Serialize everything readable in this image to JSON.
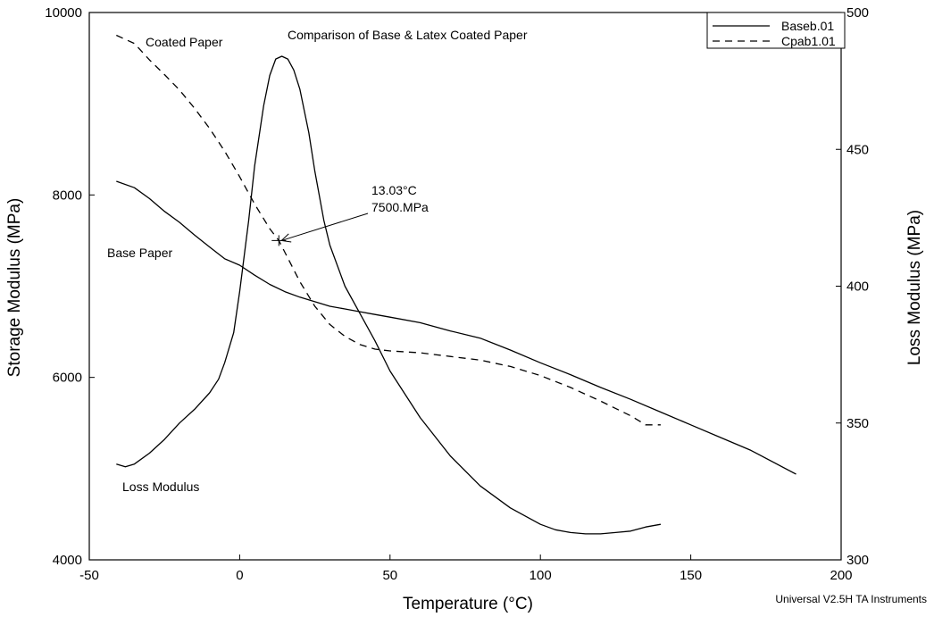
{
  "chart_data": {
    "type": "line",
    "title": "Comparison of Base & Latex Coated Paper",
    "xlabel": "Temperature (°C)",
    "ylabel": "Storage Modulus (MPa)",
    "y2label": "Loss Modulus (MPa)",
    "xlim": [
      -50,
      200
    ],
    "ylim": [
      4000,
      10000
    ],
    "y2lim": [
      300,
      500
    ],
    "x_ticks": [
      -50,
      0,
      50,
      100,
      150,
      200
    ],
    "y_ticks": [
      4000,
      6000,
      8000,
      10000
    ],
    "y2_ticks": [
      300,
      350,
      400,
      450,
      500
    ],
    "grid": false,
    "legend_position": "top-right",
    "legend": [
      {
        "label": "Baseb.01",
        "style": "solid"
      },
      {
        "label": "Cpab1.01",
        "style": "dashed"
      }
    ],
    "series": [
      {
        "name": "Baseb.01",
        "style": "solid",
        "axis": "left",
        "x": [
          -41,
          -35,
          -30,
          -25,
          -20,
          -15,
          -10,
          -5,
          0,
          5,
          10,
          15,
          20,
          25,
          30,
          35,
          40,
          45,
          50,
          60,
          70,
          80,
          90,
          100,
          110,
          120,
          130,
          140,
          150,
          160,
          170,
          185
        ],
        "y": [
          8150,
          8080,
          7960,
          7820,
          7700,
          7560,
          7430,
          7300,
          7230,
          7120,
          7020,
          6940,
          6880,
          6830,
          6780,
          6750,
          6720,
          6690,
          6660,
          6600,
          6510,
          6430,
          6300,
          6160,
          6030,
          5890,
          5760,
          5620,
          5480,
          5340,
          5200,
          4940
        ]
      },
      {
        "name": "Baseb.01",
        "style": "solid",
        "axis": "right",
        "x": [
          -41,
          -38,
          -35,
          -30,
          -25,
          -20,
          -15,
          -10,
          -7,
          -5,
          -2,
          0,
          3,
          5,
          8,
          10,
          12,
          14,
          16,
          18,
          20,
          23,
          25,
          28,
          30,
          35,
          40,
          45,
          50,
          60,
          70,
          80,
          90,
          100,
          105,
          110,
          115,
          120,
          125,
          130,
          135,
          140
        ],
        "y": [
          335,
          334,
          335,
          339,
          344,
          350,
          355,
          361,
          366,
          372,
          383,
          398,
          424,
          444,
          466,
          477,
          483,
          484,
          483,
          479,
          472,
          456,
          442,
          424,
          415,
          400,
          390,
          380,
          369,
          352,
          338,
          327,
          319,
          313,
          311,
          310,
          309.5,
          309.5,
          310,
          310.5,
          312,
          313
        ]
      },
      {
        "name": "Cpab1.01",
        "style": "dashed",
        "axis": "left",
        "x": [
          -41,
          -35,
          -30,
          -25,
          -20,
          -15,
          -10,
          -5,
          0,
          5,
          10,
          13.03,
          20,
          25,
          30,
          35,
          40,
          45,
          50,
          60,
          70,
          80,
          90,
          100,
          110,
          120,
          130,
          135,
          140
        ],
        "y": [
          9750,
          9660,
          9480,
          9320,
          9150,
          8950,
          8730,
          8480,
          8200,
          7900,
          7630,
          7500,
          7050,
          6780,
          6580,
          6450,
          6360,
          6310,
          6290,
          6270,
          6230,
          6190,
          6120,
          6020,
          5890,
          5740,
          5580,
          5480,
          5480
        ]
      }
    ],
    "annotations": [
      {
        "text": "Coated Paper"
      },
      {
        "text": "Base Paper"
      },
      {
        "text": "Loss Modulus"
      },
      {
        "text": "13.03°C",
        "x": 13.03,
        "y": 7500
      },
      {
        "text": "7500.MPa",
        "x": 13.03,
        "y": 7500
      }
    ],
    "footer": "Universal V2.5H TA Instruments"
  }
}
